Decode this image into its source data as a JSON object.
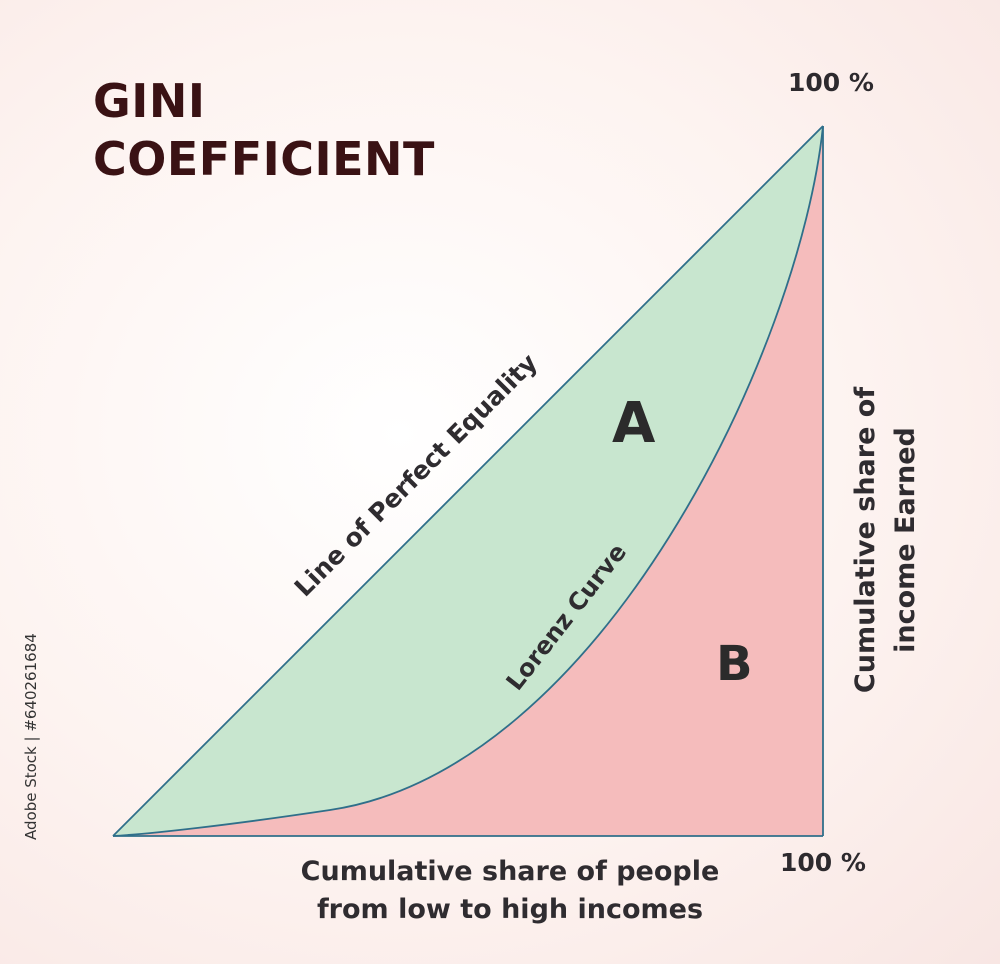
{
  "title": {
    "line1": "GINI",
    "line2": "COEFFICIENT"
  },
  "labels": {
    "top_percent": "100 %",
    "right_percent": "100 %",
    "x_axis_line1": "Cumulative share of people",
    "x_axis_line2": "from low to high incomes",
    "y_axis_line1": "Cumulative share of",
    "y_axis_line2": "income Earned",
    "equality_line": "Line of Perfect Equality",
    "lorenz_curve": "Lorenz Curve",
    "region_a": "A",
    "region_b": "B"
  },
  "watermark": {
    "side_text": "Adobe Stock | #640261684"
  },
  "colors": {
    "region_a_fill": "#c8e6cf",
    "region_b_fill": "#f5bcbc",
    "line_stroke": "#2f6f8a",
    "text_dark": "#2f2c30",
    "title": "#3a1214"
  }
}
